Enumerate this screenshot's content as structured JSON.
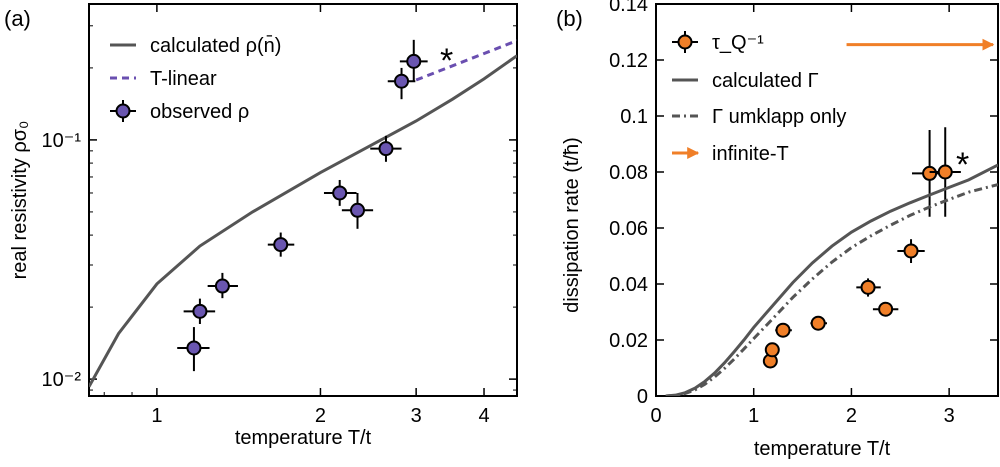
{
  "chart_data": [
    {
      "type": "scatter",
      "panel_label": "(a)",
      "xlabel": "temperature T/t",
      "ylabel": "real resistivity ρσ₀",
      "xscale": "log",
      "yscale": "log",
      "xlim": [
        0.75,
        4.6
      ],
      "ylim": [
        0.0085,
        0.37
      ],
      "xticks": [
        1,
        2,
        3,
        4
      ],
      "xtick_labels": [
        "1",
        "2",
        "3",
        "4"
      ],
      "yticks": [
        0.01,
        0.1
      ],
      "ytick_labels": [
        "10⁻²",
        "10⁻¹"
      ],
      "annotation": "*",
      "legend_position": "top-left",
      "series": [
        {
          "name": "calculated ρ(n̄)",
          "kind": "line",
          "color": "#555555",
          "x": [
            0.75,
            0.85,
            1.0,
            1.2,
            1.5,
            2.0,
            2.5,
            3.0,
            3.5,
            4.0,
            4.6
          ],
          "y": [
            0.0093,
            0.0155,
            0.025,
            0.036,
            0.05,
            0.073,
            0.096,
            0.12,
            0.148,
            0.18,
            0.225
          ]
        },
        {
          "name": "T-linear",
          "kind": "dashed",
          "color": "#6a4fb0",
          "x": [
            3.0,
            4.6
          ],
          "y": [
            0.178,
            0.26
          ]
        },
        {
          "name": "observed ρ",
          "kind": "points",
          "color": "#6a56b0",
          "points": [
            {
              "x": 1.17,
              "y": 0.0135,
              "xlo": 1.09,
              "xhi": 1.25,
              "ylo": 0.0108,
              "yhi": 0.0165
            },
            {
              "x": 1.2,
              "y": 0.0192,
              "xlo": 1.12,
              "xhi": 1.28,
              "ylo": 0.017,
              "yhi": 0.0217
            },
            {
              "x": 1.32,
              "y": 0.0245,
              "xlo": 1.24,
              "xhi": 1.41,
              "ylo": 0.0218,
              "yhi": 0.0278
            },
            {
              "x": 1.69,
              "y": 0.0365,
              "xlo": 1.6,
              "xhi": 1.79,
              "ylo": 0.0325,
              "yhi": 0.041
            },
            {
              "x": 2.17,
              "y": 0.06,
              "xlo": 2.03,
              "xhi": 2.33,
              "ylo": 0.053,
              "yhi": 0.068
            },
            {
              "x": 2.34,
              "y": 0.0508,
              "xlo": 2.19,
              "xhi": 2.5,
              "ylo": 0.0425,
              "yhi": 0.06
            },
            {
              "x": 2.64,
              "y": 0.092,
              "xlo": 2.47,
              "xhi": 2.82,
              "ylo": 0.081,
              "yhi": 0.104
            },
            {
              "x": 2.82,
              "y": 0.176,
              "xlo": 2.66,
              "xhi": 2.99,
              "ylo": 0.148,
              "yhi": 0.2
            },
            {
              "x": 2.97,
              "y": 0.213,
              "xlo": 2.8,
              "xhi": 3.15,
              "ylo": 0.175,
              "yhi": 0.262
            }
          ]
        }
      ]
    },
    {
      "type": "scatter",
      "panel_label": "(b)",
      "xlabel": "temperature T/t",
      "ylabel": "dissipation rate (t/ħ)",
      "xlim": [
        0,
        3.5
      ],
      "ylim": [
        0,
        0.14
      ],
      "xticks": [
        0,
        1,
        2,
        3
      ],
      "xtick_labels": [
        "0",
        "1",
        "2",
        "3"
      ],
      "yticks": [
        0,
        0.02,
        0.04,
        0.06,
        0.08,
        0.1,
        0.12,
        0.14
      ],
      "ytick_labels": [
        "0",
        "0.02",
        "0.04",
        "0.06",
        "0.08",
        "0.1",
        "0.12",
        "0.14"
      ],
      "annotation": "*",
      "legend_position": "top-left",
      "series": [
        {
          "name": "τ_Q⁻¹",
          "kind": "points",
          "color": "#f07f28",
          "points": [
            {
              "x": 1.17,
              "y": 0.0125,
              "xlo": 1.12,
              "xhi": 1.22,
              "ylo": 0.0105,
              "yhi": 0.0145
            },
            {
              "x": 1.19,
              "y": 0.0165,
              "xlo": 1.14,
              "xhi": 1.24,
              "ylo": 0.0145,
              "yhi": 0.0185
            },
            {
              "x": 1.3,
              "y": 0.0235,
              "xlo": 1.22,
              "xhi": 1.39,
              "ylo": 0.0215,
              "yhi": 0.0255
            },
            {
              "x": 1.66,
              "y": 0.026,
              "xlo": 1.58,
              "xhi": 1.75,
              "ylo": 0.024,
              "yhi": 0.028
            },
            {
              "x": 2.17,
              "y": 0.0388,
              "xlo": 2.05,
              "xhi": 2.3,
              "ylo": 0.0355,
              "yhi": 0.042
            },
            {
              "x": 2.35,
              "y": 0.031,
              "xlo": 2.22,
              "xhi": 2.48,
              "ylo": 0.0288,
              "yhi": 0.0332
            },
            {
              "x": 2.61,
              "y": 0.0518,
              "xlo": 2.47,
              "xhi": 2.75,
              "ylo": 0.0475,
              "yhi": 0.056
            },
            {
              "x": 2.8,
              "y": 0.0795,
              "xlo": 2.62,
              "xhi": 2.98,
              "ylo": 0.064,
              "yhi": 0.095
            },
            {
              "x": 2.96,
              "y": 0.08,
              "xlo": 2.8,
              "xhi": 3.12,
              "ylo": 0.064,
              "yhi": 0.096
            }
          ]
        },
        {
          "name": "calculated Γ",
          "kind": "line",
          "color": "#555555",
          "x": [
            0.1,
            0.2,
            0.3,
            0.4,
            0.5,
            0.6,
            0.7,
            0.8,
            0.9,
            1.0,
            1.2,
            1.4,
            1.6,
            1.8,
            2.0,
            2.2,
            2.4,
            2.6,
            2.8,
            3.0,
            3.2,
            3.5
          ],
          "y": [
            0.0,
            0.0003,
            0.0012,
            0.0028,
            0.0052,
            0.0082,
            0.0118,
            0.0158,
            0.02,
            0.0245,
            0.0325,
            0.0405,
            0.0475,
            0.0535,
            0.0585,
            0.0625,
            0.066,
            0.069,
            0.0718,
            0.0745,
            0.0772,
            0.0825
          ]
        },
        {
          "name": "Γ umklapp only",
          "kind": "dashdot",
          "color": "#555555",
          "x": [
            0.1,
            0.2,
            0.3,
            0.4,
            0.5,
            0.6,
            0.7,
            0.8,
            0.9,
            1.0,
            1.2,
            1.4,
            1.6,
            1.8,
            2.0,
            2.2,
            2.4,
            2.6,
            2.8,
            3.0,
            3.2,
            3.5
          ],
          "y": [
            0.0,
            0.0002,
            0.0009,
            0.0022,
            0.0042,
            0.0068,
            0.0098,
            0.0132,
            0.0168,
            0.0205,
            0.0278,
            0.0352,
            0.0418,
            0.0478,
            0.053,
            0.0572,
            0.061,
            0.0645,
            0.0675,
            0.0702,
            0.0728,
            0.0755
          ]
        },
        {
          "name": "infinite-T",
          "kind": "arrow",
          "color": "#f07f28",
          "x": [
            1.95,
            3.45
          ],
          "y": [
            0.1255,
            0.1255
          ]
        }
      ]
    }
  ]
}
